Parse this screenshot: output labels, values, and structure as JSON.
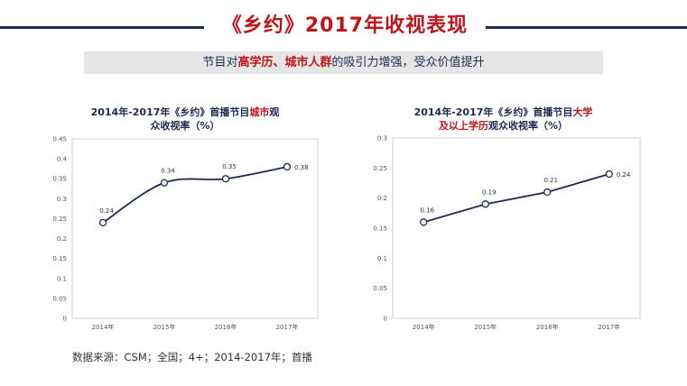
{
  "header": {
    "title": "《乡约》2017年收视表现"
  },
  "subtitle": {
    "part1": "节目对",
    "highlight1": "高学历、城市人群",
    "part2": "的吸引力增强，受众价值提升"
  },
  "colors": {
    "accent_red": "#c0141b",
    "navy": "#1c2a55",
    "gray_bar": "#e6e6e6"
  },
  "chart_data": [
    {
      "type": "line",
      "title_line1_a": "2014年-2017年《乡约》首播节目",
      "title_line1_hl": "城市",
      "title_line1_b": "观",
      "title_line2": "众收视率（%）",
      "categories": [
        "2014年",
        "2015年",
        "2016年",
        "2017年"
      ],
      "values": [
        0.24,
        0.34,
        0.35,
        0.38
      ],
      "value_labels": [
        "0.24",
        "0.34",
        "0.35",
        "0.38"
      ],
      "yticks": [
        "0",
        "0.05",
        "0.1",
        "0.15",
        "0.2",
        "0.25",
        "0.3",
        "0.35",
        "0.4",
        "0.45"
      ],
      "ylim": [
        0,
        0.45
      ],
      "smooth": true
    },
    {
      "type": "line",
      "title_line1_a": "2014年-2017年《乡约》首播节目",
      "title_line1_hl": "大学",
      "title_line2_hl": "及以上学历",
      "title_line2_b": "观众收视率（%）",
      "categories": [
        "2014年",
        "2015年",
        "2016年",
        "2017年"
      ],
      "values": [
        0.16,
        0.19,
        0.21,
        0.24
      ],
      "value_labels": [
        "0.16",
        "0.19",
        "0.21",
        "0.24"
      ],
      "yticks": [
        "0",
        "0.05",
        "0.1",
        "0.15",
        "0.2",
        "0.25",
        "0.3"
      ],
      "ylim": [
        0,
        0.3
      ],
      "smooth": false
    }
  ],
  "footer": {
    "source": "数据来源：CSM；全国；4+；2014-2017年；首播"
  }
}
